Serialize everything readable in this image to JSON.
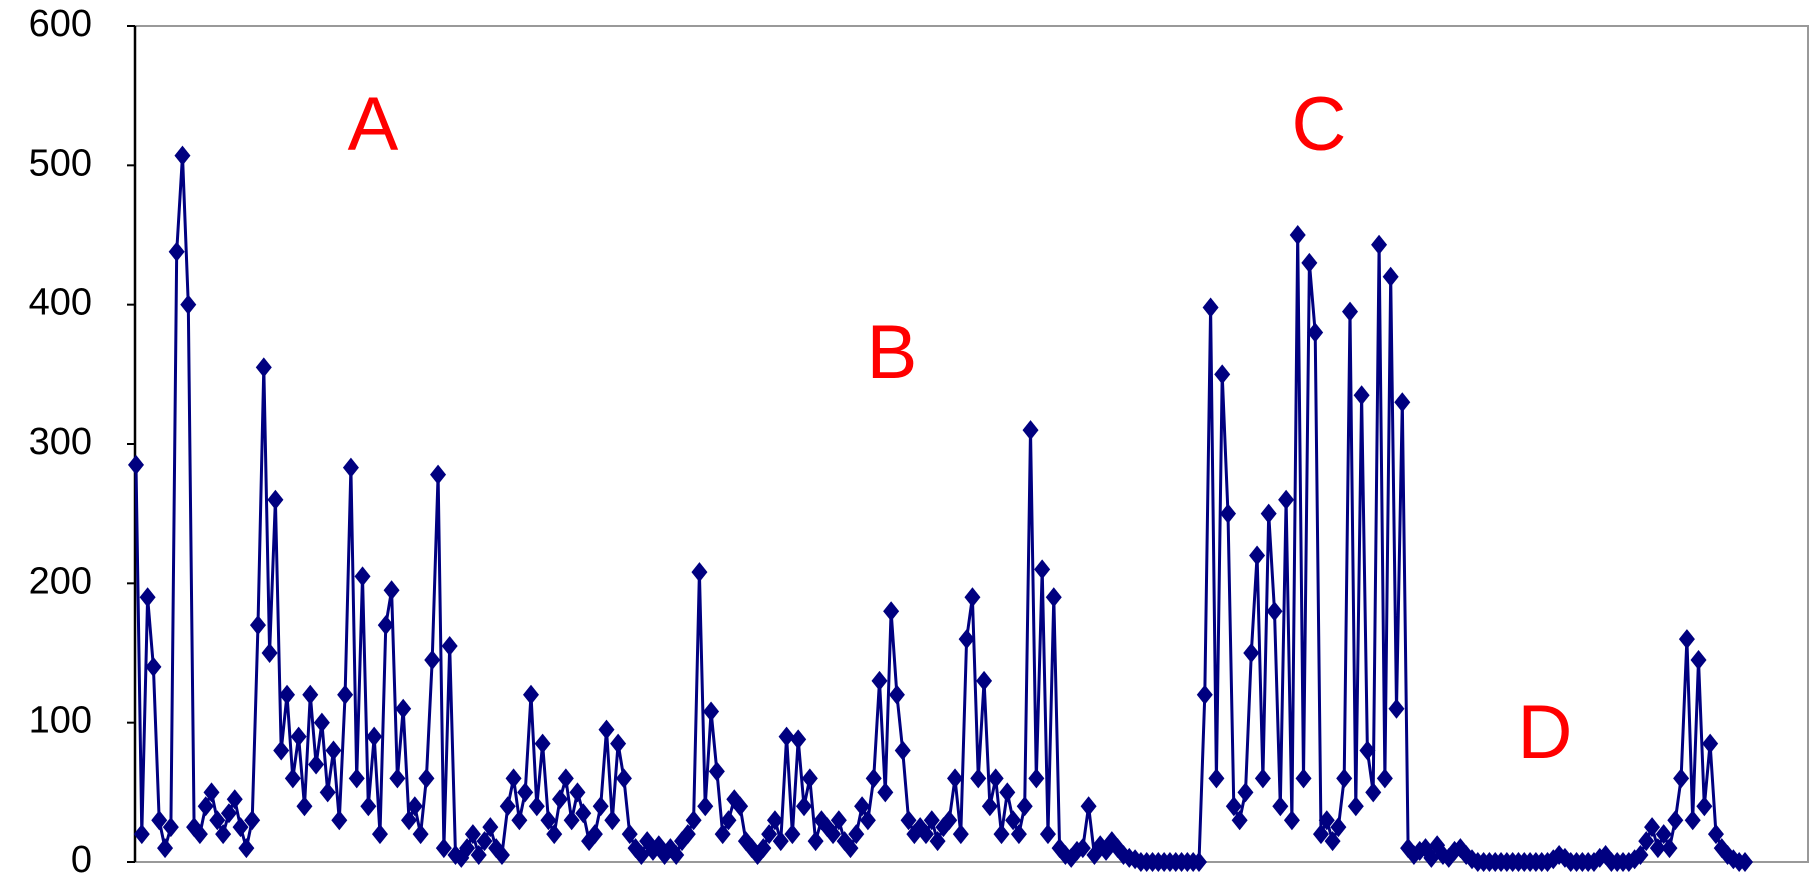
{
  "chart_data": {
    "type": "line",
    "annotations": [
      "A",
      "B",
      "C",
      "D"
    ],
    "annotation_color": "#ff0000",
    "ylim": [
      0,
      600
    ],
    "yticks": [
      0,
      100,
      200,
      300,
      400,
      500,
      600
    ],
    "series": [
      {
        "color": "#000080",
        "marker": "diamond",
        "values": [
          285,
          20,
          190,
          140,
          30,
          10,
          25,
          438,
          507,
          400,
          25,
          20,
          40,
          50,
          30,
          20,
          35,
          45,
          25,
          10,
          30,
          170,
          355,
          150,
          260,
          80,
          120,
          60,
          90,
          40,
          120,
          70,
          100,
          50,
          80,
          30,
          120,
          283,
          60,
          205,
          40,
          90,
          20,
          170,
          195,
          60,
          110,
          30,
          40,
          20,
          60,
          145,
          278,
          10,
          155,
          5,
          3,
          10,
          20,
          5,
          15,
          25,
          10,
          5,
          40,
          60,
          30,
          50,
          120,
          40,
          85,
          30,
          20,
          45,
          60,
          30,
          50,
          35,
          15,
          20,
          40,
          95,
          30,
          85,
          60,
          20,
          10,
          5,
          15,
          8,
          12,
          5,
          10,
          5,
          15,
          20,
          30,
          208,
          40,
          108,
          65,
          20,
          30,
          45,
          40,
          15,
          10,
          5,
          10,
          20,
          30,
          15,
          90,
          20,
          88,
          40,
          60,
          15,
          30,
          25,
          20,
          30,
          15,
          10,
          20,
          40,
          30,
          60,
          130,
          50,
          180,
          120,
          80,
          30,
          20,
          25,
          20,
          30,
          15,
          25,
          30,
          60,
          20,
          160,
          190,
          60,
          130,
          40,
          60,
          20,
          50,
          30,
          20,
          40,
          310,
          60,
          210,
          20,
          190,
          10,
          5,
          3,
          8,
          10,
          40,
          5,
          12,
          8,
          15,
          10,
          5,
          3,
          2,
          0,
          0,
          0,
          0,
          0,
          0,
          0,
          0,
          0,
          0,
          0,
          120,
          398,
          60,
          350,
          250,
          40,
          30,
          50,
          150,
          220,
          60,
          250,
          180,
          40,
          260,
          30,
          450,
          60,
          430,
          380,
          20,
          30,
          15,
          25,
          60,
          395,
          40,
          335,
          80,
          50,
          443,
          60,
          420,
          110,
          330,
          10,
          5,
          8,
          10,
          3,
          12,
          5,
          3,
          8,
          10,
          5,
          2,
          0,
          0,
          0,
          0,
          0,
          0,
          0,
          0,
          0,
          0,
          0,
          0,
          0,
          2,
          5,
          3,
          0,
          0,
          0,
          0,
          0,
          3,
          5,
          0,
          0,
          0,
          0,
          2,
          5,
          15,
          25,
          10,
          20,
          10,
          30,
          60,
          160,
          30,
          145,
          40,
          85,
          20,
          10,
          5,
          2,
          0,
          0
        ]
      }
    ]
  }
}
